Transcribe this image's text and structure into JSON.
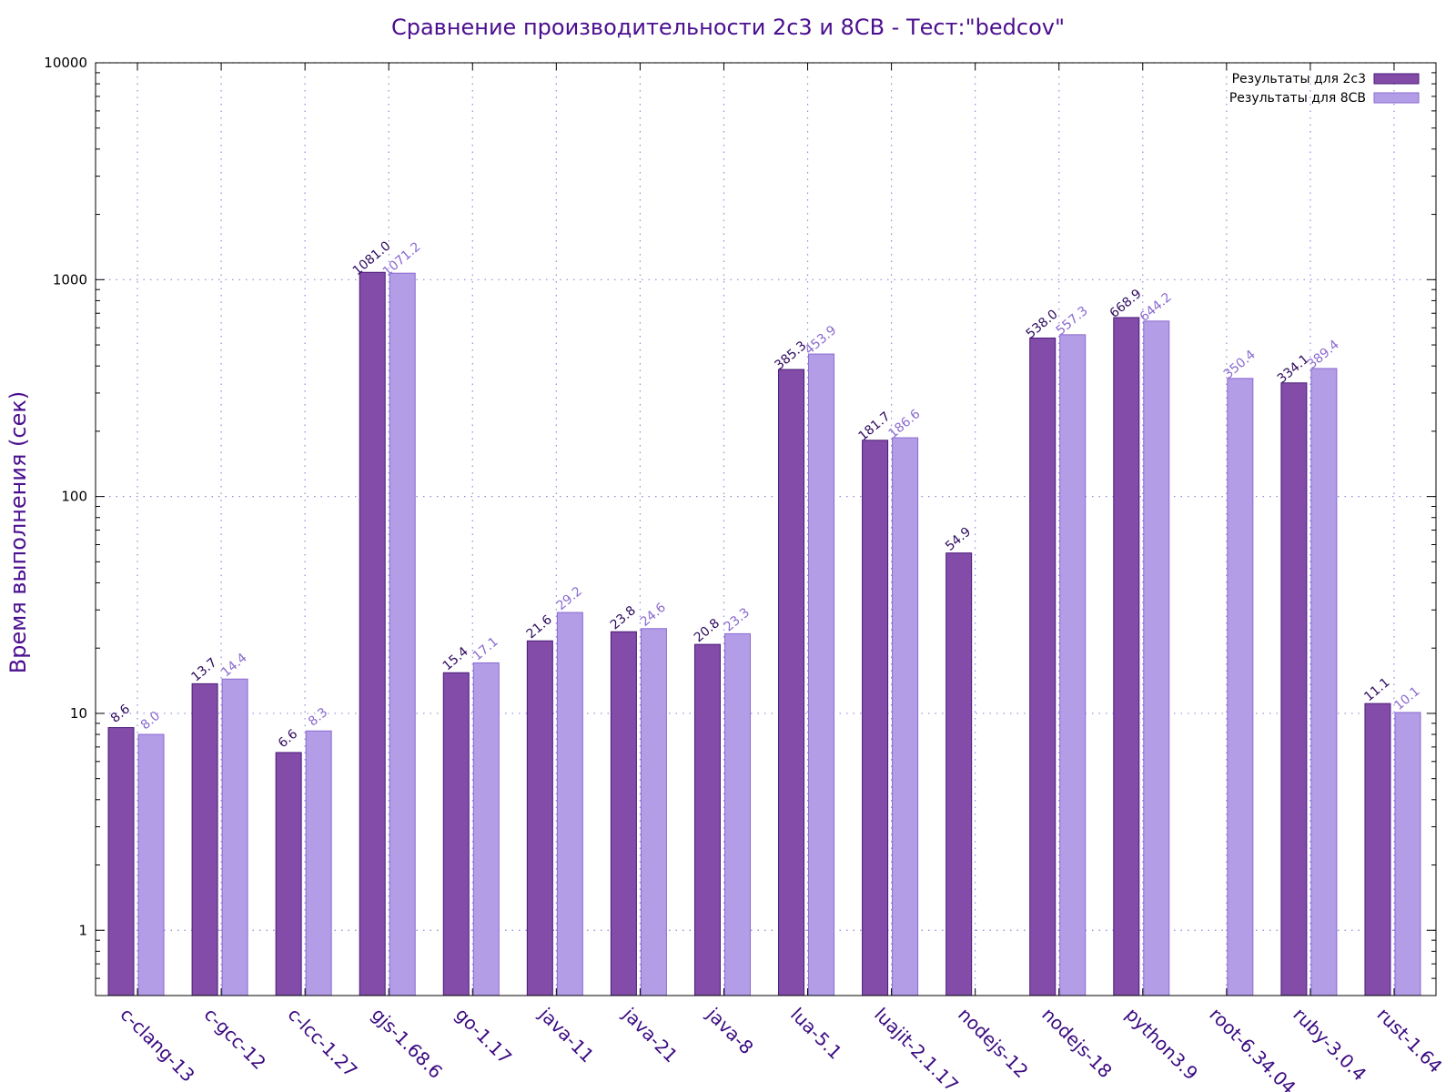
{
  "chart_data": {
    "type": "bar",
    "title": "Сравнение производительности 2с3 и 8СВ - Тест:\"bedcov\"",
    "ylabel": "Время выполнения (сек)",
    "xlabel": "",
    "yscale": "log",
    "ylim": [
      0.5,
      10000
    ],
    "yticks": [
      {
        "value": 1,
        "label": "1"
      },
      {
        "value": 10,
        "label": "10"
      },
      {
        "value": 100,
        "label": "100"
      },
      {
        "value": 1000,
        "label": "1000"
      },
      {
        "value": 10000,
        "label": "10000"
      }
    ],
    "grid": true,
    "legend_position": "top-right",
    "categories": [
      "c-clang-13",
      "c-gcc-12",
      "c-lcc-1.27",
      "gjs-1.68.6",
      "go-1.17",
      "java-11",
      "java-21",
      "java-8",
      "lua-5.1",
      "luajit-2.1.17",
      "nodejs-12",
      "nodejs-18",
      "python3.9",
      "root-6.34.04",
      "ruby-3.0.4",
      "rust-1.64"
    ],
    "series": [
      {
        "name": "Результаты для 2с3",
        "color": "#824ca8",
        "stroke": "#4a1a78",
        "label_color": "#2e0a5e",
        "values": [
          8.6,
          13.7,
          6.6,
          1081.0,
          15.4,
          21.6,
          23.8,
          20.8,
          385.3,
          181.7,
          54.9,
          538.0,
          668.9,
          null,
          334.1,
          11.1
        ],
        "labels": [
          "8.6",
          "13.7",
          "6.6",
          "1081.0",
          "15.4",
          "21.6",
          "23.8",
          "20.8",
          "385.3",
          "181.7",
          "54.9",
          "538.0",
          "668.9",
          null,
          "334.1",
          "11.1"
        ]
      },
      {
        "name": "Результаты для 8СВ",
        "color": "#b39de6",
        "stroke": "#8a6ad0",
        "label_color": "#8a6ad0",
        "values": [
          8.0,
          14.4,
          8.3,
          1071.2,
          17.1,
          29.2,
          24.6,
          23.3,
          453.9,
          186.6,
          null,
          557.3,
          644.2,
          350.4,
          389.4,
          10.1
        ],
        "labels": [
          "8.0",
          "14.4",
          "8.3",
          "1071.2",
          "17.1",
          "29.2",
          "24.6",
          "23.3",
          "453.9",
          "186.6",
          null,
          "557.3",
          "644.2",
          "350.4",
          "389.4",
          "10.1"
        ]
      }
    ]
  }
}
